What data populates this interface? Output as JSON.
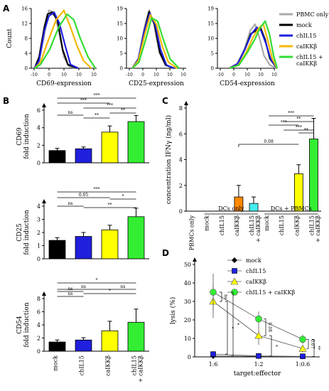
{
  "panel_labels": {
    "a": "A",
    "b": "B",
    "c": "C",
    "d": "D"
  },
  "chart_data": [
    {
      "id": "A1",
      "type": "line",
      "title": "",
      "xlabel": "CD69-expression",
      "ylabel": "Count",
      "xticks": [
        "-10",
        "0",
        "10",
        "10",
        "10"
      ],
      "yticks": [
        "0",
        "4",
        "8",
        "12",
        "16"
      ],
      "ylim": [
        0,
        16
      ],
      "series": [
        {
          "color": "#aaaaaa",
          "values": [
            [
              0.05,
              0
            ],
            [
              0.12,
              2
            ],
            [
              0.2,
              9
            ],
            [
              0.27,
              15.5
            ],
            [
              0.35,
              15
            ],
            [
              0.42,
              10
            ],
            [
              0.5,
              3
            ],
            [
              0.58,
              0.5
            ],
            [
              0.7,
              0
            ]
          ]
        },
        {
          "color": "#000000",
          "values": [
            [
              0.05,
              0
            ],
            [
              0.12,
              3
            ],
            [
              0.2,
              11
            ],
            [
              0.25,
              14.5
            ],
            [
              0.32,
              15
            ],
            [
              0.4,
              13
            ],
            [
              0.48,
              5
            ],
            [
              0.56,
              1
            ],
            [
              0.7,
              0
            ]
          ]
        },
        {
          "color": "#1f1fdd",
          "values": [
            [
              0.05,
              0
            ],
            [
              0.12,
              2
            ],
            [
              0.2,
              10
            ],
            [
              0.27,
              14
            ],
            [
              0.35,
              15
            ],
            [
              0.43,
              12
            ],
            [
              0.52,
              6
            ],
            [
              0.6,
              1
            ],
            [
              0.72,
              0
            ]
          ]
        },
        {
          "color": "#f5b800",
          "values": [
            [
              0.05,
              0
            ],
            [
              0.14,
              1.5
            ],
            [
              0.25,
              7
            ],
            [
              0.38,
              13
            ],
            [
              0.5,
              15.5
            ],
            [
              0.6,
              11
            ],
            [
              0.7,
              6
            ],
            [
              0.8,
              2
            ],
            [
              0.92,
              0
            ]
          ]
        },
        {
          "color": "#33dd33",
          "values": [
            [
              0.05,
              0
            ],
            [
              0.14,
              1
            ],
            [
              0.28,
              5
            ],
            [
              0.42,
              11
            ],
            [
              0.55,
              14.5
            ],
            [
              0.65,
              13
            ],
            [
              0.75,
              8
            ],
            [
              0.87,
              3
            ],
            [
              0.98,
              0
            ]
          ]
        }
      ]
    },
    {
      "id": "A2",
      "type": "line",
      "title": "",
      "xlabel": "CD25-expression",
      "ylabel": "",
      "xticks": [
        "-10",
        "0",
        "10",
        "10",
        "10"
      ],
      "yticks": [
        "0",
        "5",
        "10",
        "15",
        "19"
      ],
      "ylim": [
        0,
        19
      ],
      "series": [
        {
          "color": "#aaaaaa",
          "values": [
            [
              0.1,
              0
            ],
            [
              0.2,
              3
            ],
            [
              0.3,
              13
            ],
            [
              0.38,
              18.5
            ],
            [
              0.46,
              14
            ],
            [
              0.55,
              5
            ],
            [
              0.65,
              1
            ],
            [
              0.8,
              0
            ]
          ]
        },
        {
          "color": "#000000",
          "values": [
            [
              0.1,
              0
            ],
            [
              0.2,
              3
            ],
            [
              0.3,
              12
            ],
            [
              0.38,
              18
            ],
            [
              0.47,
              14
            ],
            [
              0.56,
              5
            ],
            [
              0.66,
              1
            ],
            [
              0.8,
              0
            ]
          ]
        },
        {
          "color": "#1f1fdd",
          "values": [
            [
              0.1,
              0
            ],
            [
              0.2,
              3
            ],
            [
              0.3,
              12
            ],
            [
              0.39,
              17.5
            ],
            [
              0.48,
              14
            ],
            [
              0.57,
              6
            ],
            [
              0.67,
              1
            ],
            [
              0.8,
              0
            ]
          ]
        },
        {
          "color": "#f5b800",
          "values": [
            [
              0.1,
              0
            ],
            [
              0.2,
              2.5
            ],
            [
              0.31,
              11
            ],
            [
              0.4,
              17
            ],
            [
              0.5,
              14
            ],
            [
              0.6,
              7
            ],
            [
              0.7,
              2
            ],
            [
              0.85,
              0
            ]
          ]
        },
        {
          "color": "#33dd33",
          "values": [
            [
              0.1,
              0
            ],
            [
              0.21,
              2
            ],
            [
              0.32,
              9
            ],
            [
              0.42,
              16
            ],
            [
              0.52,
              15
            ],
            [
              0.62,
              9
            ],
            [
              0.73,
              3
            ],
            [
              0.88,
              0
            ]
          ]
        }
      ]
    },
    {
      "id": "A3",
      "type": "line",
      "title": "",
      "xlabel": "CD54-expression",
      "ylabel": "",
      "xticks": [
        "-10",
        "0",
        "10",
        "10",
        "10"
      ],
      "yticks": [
        "0",
        "5",
        "10",
        "15",
        "19"
      ],
      "ylim": [
        0,
        19
      ],
      "series": [
        {
          "color": "#aaaaaa",
          "values": [
            [
              0.2,
              0
            ],
            [
              0.32,
              1
            ],
            [
              0.45,
              6
            ],
            [
              0.55,
              12
            ],
            [
              0.63,
              14
            ],
            [
              0.7,
              10
            ],
            [
              0.78,
              4
            ],
            [
              0.88,
              1
            ],
            [
              1,
              0
            ]
          ]
        },
        {
          "color": "#000000",
          "values": [
            [
              0.2,
              0
            ],
            [
              0.34,
              1.5
            ],
            [
              0.46,
              6
            ],
            [
              0.56,
              11
            ],
            [
              0.65,
              12
            ],
            [
              0.72,
              13
            ],
            [
              0.8,
              9
            ],
            [
              0.88,
              3
            ],
            [
              1,
              0
            ]
          ]
        },
        {
          "color": "#1f1fdd",
          "values": [
            [
              0.2,
              0
            ],
            [
              0.34,
              1.5
            ],
            [
              0.46,
              6
            ],
            [
              0.57,
              11
            ],
            [
              0.66,
              13
            ],
            [
              0.73,
              12
            ],
            [
              0.81,
              8
            ],
            [
              0.89,
              3
            ],
            [
              1,
              0
            ]
          ]
        },
        {
          "color": "#f5b800",
          "values": [
            [
              0.2,
              0
            ],
            [
              0.35,
              1
            ],
            [
              0.48,
              5
            ],
            [
              0.6,
              10
            ],
            [
              0.7,
              13
            ],
            [
              0.77,
              14
            ],
            [
              0.84,
              9
            ],
            [
              0.92,
              3
            ],
            [
              1,
              0
            ]
          ]
        },
        {
          "color": "#33dd33",
          "values": [
            [
              0.2,
              0
            ],
            [
              0.36,
              1
            ],
            [
              0.5,
              5
            ],
            [
              0.62,
              9
            ],
            [
              0.72,
              13
            ],
            [
              0.8,
              15
            ],
            [
              0.87,
              11
            ],
            [
              0.94,
              4
            ],
            [
              1,
              0
            ]
          ]
        }
      ]
    },
    {
      "id": "B1",
      "type": "bar",
      "ylabel": "CD69\nfold induction",
      "categories": [
        "mock",
        "chIL15",
        "caIKKβ",
        "chIL15\n+ caIKKβ"
      ],
      "values": [
        1.4,
        1.6,
        3.5,
        4.7
      ],
      "errors": [
        0.25,
        0.2,
        0.7,
        0.7
      ],
      "colors": [
        "#000000",
        "#1f1fdd",
        "#ffff00",
        "#33ee33"
      ],
      "yticks": [
        "0",
        "2",
        "4",
        "6"
      ],
      "ylim": [
        0,
        6
      ],
      "significance": [
        "***",
        "***",
        "***",
        "**",
        "ns",
        "**"
      ]
    },
    {
      "id": "B2",
      "type": "bar",
      "ylabel": "CD25\nfold induction",
      "categories": [
        "mock",
        "chIL15",
        "caIKKβ",
        "chIL15\n+ caIKKβ"
      ],
      "values": [
        1.4,
        1.7,
        2.2,
        3.2
      ],
      "errors": [
        0.2,
        0.3,
        0.35,
        0.65
      ],
      "colors": [
        "#000000",
        "#1f1fdd",
        "#ffff00",
        "#33ee33"
      ],
      "yticks": [
        "0",
        "1",
        "2",
        "3",
        "4"
      ],
      "ylim": [
        0,
        4
      ],
      "significance": [
        "***",
        "0.05",
        "*",
        "ns",
        "**"
      ]
    },
    {
      "id": "B3",
      "type": "bar",
      "ylabel": "CD54\nfold induction",
      "categories": [
        "mock",
        "chIL15",
        "caIKKβ",
        "chIL15\n+ caIKKβ"
      ],
      "values": [
        1.4,
        1.7,
        3.1,
        4.4
      ],
      "errors": [
        0.3,
        0.35,
        1.45,
        2.0
      ],
      "colors": [
        "#000000",
        "#1f1fdd",
        "#ffff00",
        "#33ee33"
      ],
      "yticks": [
        "0",
        "2",
        "4",
        "6",
        "8"
      ],
      "ylim": [
        0,
        8
      ],
      "significance": [
        "*",
        "ns",
        "ns",
        "ns",
        "*",
        "ns"
      ]
    },
    {
      "id": "C",
      "type": "bar",
      "ylabel": "concentration IFNγ (ng/ml)",
      "categories": [
        "PBMCs only",
        "mock",
        "chIL15",
        "caIKKβ",
        "chIL15\n+ caIKKβ",
        "mock",
        "chIL15",
        "caIKKβ",
        "chIL15\n+ caIKKβ"
      ],
      "values": [
        0,
        0,
        0,
        1.1,
        0.6,
        0,
        0,
        2.9,
        5.6
      ],
      "errors": [
        0,
        0,
        0,
        0.9,
        0.5,
        0,
        0,
        0.7,
        1.6
      ],
      "colors": [
        "#000000",
        "#000000",
        "#1f1fdd",
        "#ff8800",
        "#44eeee",
        "#000000",
        "#1f1fdd",
        "#ffff00",
        "#33ee33"
      ],
      "yticks": [
        "0",
        "2",
        "4",
        "6",
        "8"
      ],
      "ylim": [
        0,
        8
      ],
      "groups": [
        "DCs only",
        "DCs + PBMCs"
      ],
      "significance": [
        "***",
        "**",
        "***",
        "***",
        "**",
        "0.08"
      ]
    },
    {
      "id": "D",
      "type": "line",
      "xlabel": "target:effector",
      "ylabel": "lysis (%)",
      "categories": [
        "1:6",
        "1:2",
        "1:0.6"
      ],
      "yticks": [
        "0",
        "10",
        "20",
        "30",
        "40",
        "50"
      ],
      "ylim": [
        0,
        50
      ],
      "series": [
        {
          "name": "mock",
          "marker": "diamond",
          "color": "#000000",
          "values": [
            0.5,
            0.3,
            0.2
          ],
          "errors": [
            0.5,
            0.3,
            0.2
          ]
        },
        {
          "name": "chIL15",
          "marker": "square",
          "color": "#1f1fdd",
          "values": [
            1.5,
            0.5,
            0.3
          ],
          "errors": [
            1.5,
            0.5,
            0.3
          ]
        },
        {
          "name": "caIKKβ",
          "marker": "triangle",
          "color": "#ffff00",
          "values": [
            30,
            11.5,
            4.5
          ],
          "errors": [
            9,
            5,
            2
          ]
        },
        {
          "name": "chIL15 + caIKKβ",
          "marker": "circle",
          "color": "#33ee33",
          "values": [
            35,
            20.5,
            9.5
          ],
          "errors": [
            10,
            4,
            2.5
          ]
        }
      ],
      "significance": [
        "ns",
        "*",
        "*",
        "0.08",
        "*",
        "0.07",
        "**"
      ]
    }
  ],
  "legend_a": [
    {
      "label": "PBMC only",
      "color": "#aaaaaa"
    },
    {
      "label": "mock",
      "color": "#000000"
    },
    {
      "label": "chIL15",
      "color": "#1f1fdd"
    },
    {
      "label": "caIKKβ",
      "color": "#f5b800"
    },
    {
      "label": "chIL15 +\ncaIKKβ",
      "color": "#33dd33"
    }
  ]
}
